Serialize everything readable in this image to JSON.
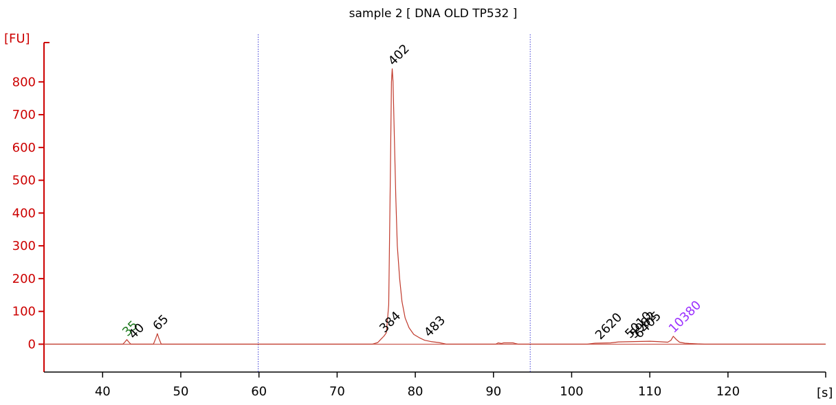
{
  "chart_data": {
    "type": "line",
    "title": "sample 2  [ DNA OLD TP532 ]",
    "ylabel": "[FU]",
    "xlabel": "[s]",
    "xlim": [
      32.5,
      132.5
    ],
    "ylim": [
      -85,
      920
    ],
    "x_ticks": [
      40,
      50,
      60,
      70,
      80,
      90,
      100,
      110,
      120
    ],
    "y_ticks": [
      0,
      100,
      200,
      300,
      400,
      500,
      600,
      700,
      800
    ],
    "marker_lines_x": [
      59.9,
      94.7
    ],
    "grid": false,
    "colors": {
      "axis": "#cc0000",
      "trace": "#c0392b",
      "marker_line": "#3b3bd6",
      "label_default": "#000000",
      "label_lower_marker": "#1f7a1f",
      "label_upper_marker": "#9b30ff"
    },
    "series": [
      {
        "x": [
          32.5,
          42.6,
          42.9,
          43.1,
          43.3,
          43.6,
          46.5,
          46.8,
          47.0,
          47.2,
          47.5,
          74.5,
          75.2,
          75.6,
          76.0,
          76.3,
          76.6,
          76.8,
          76.95,
          77.05,
          77.15,
          77.3,
          77.5,
          77.7,
          78.0,
          78.3,
          78.7,
          79.2,
          79.8,
          80.5,
          81.2,
          82.0,
          83.0,
          84.0,
          90.3,
          90.6,
          91.0,
          91.3,
          92.5,
          92.8,
          93.2,
          102.0,
          103.0,
          105.0,
          106.0,
          108.0,
          110.0,
          111.0,
          112.3,
          112.7,
          113.0,
          113.4,
          113.8,
          114.5,
          115.0,
          117.0,
          132.5
        ],
        "y": [
          0,
          0,
          8,
          14,
          8,
          0,
          0,
          18,
          32,
          18,
          0,
          0,
          5,
          15,
          25,
          35,
          120,
          500,
          800,
          840,
          800,
          650,
          450,
          300,
          200,
          130,
          80,
          50,
          30,
          20,
          12,
          8,
          5,
          0,
          0,
          4,
          2,
          4,
          4,
          2,
          0,
          0,
          3,
          4,
          7,
          8,
          9,
          8,
          6,
          12,
          24,
          14,
          6,
          3,
          2,
          0,
          0
        ]
      }
    ],
    "peak_labels": [
      {
        "text": "35",
        "x": 43.0,
        "y": 14,
        "color": "label_lower_marker"
      },
      {
        "text": "40",
        "x": 43.8,
        "y": 6,
        "color": "label_default"
      },
      {
        "text": "65",
        "x": 46.9,
        "y": 32,
        "color": "label_default"
      },
      {
        "text": "384",
        "x": 75.9,
        "y": 25,
        "color": "label_default"
      },
      {
        "text": "402",
        "x": 77.0,
        "y": 840,
        "color": "label_default"
      },
      {
        "text": "483",
        "x": 81.6,
        "y": 12,
        "color": "label_default"
      },
      {
        "text": "2620",
        "x": 103.5,
        "y": 4,
        "color": "label_default"
      },
      {
        "text": "5010",
        "x": 107.3,
        "y": 8,
        "color": "label_default"
      },
      {
        "text": "5982",
        "x": 107.9,
        "y": 8,
        "color": "label_default"
      },
      {
        "text": "6405",
        "x": 108.5,
        "y": 8,
        "color": "label_default"
      },
      {
        "text": "10380",
        "x": 112.9,
        "y": 24,
        "color": "label_upper_marker"
      }
    ]
  }
}
